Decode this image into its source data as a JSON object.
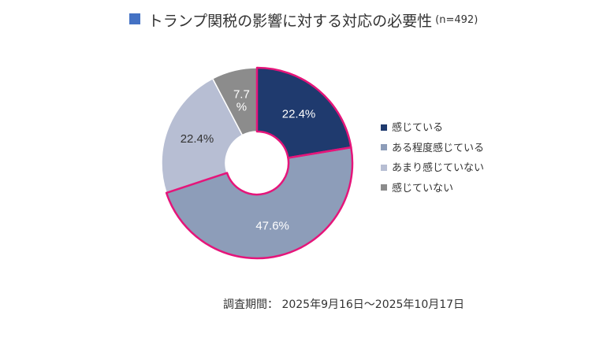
{
  "title": {
    "text": "トランプ関税の影響に対する対応の必要性",
    "n": "(n=492)",
    "square_color": "#4472C4"
  },
  "chart_data": {
    "type": "pie",
    "style": "donut",
    "title": "トランプ関税の影響に対する対応の必要性",
    "categories": [
      "感じている",
      "ある程度感じている",
      "あまり感じていない",
      "感じていない"
    ],
    "values": [
      22.4,
      47.6,
      22.4,
      7.7
    ],
    "labels": [
      "22.4%",
      "47.6%",
      "22.4%",
      "7.7\n%"
    ],
    "colors": [
      "#1F3A6E",
      "#8D9DB9",
      "#B7BED3",
      "#8C8C8C"
    ],
    "label_colors": [
      "#ffffff",
      "#ffffff",
      "#333333",
      "#ffffff"
    ],
    "highlight_color": "#E5157A",
    "highlighted": [
      0,
      1
    ],
    "legend_position": "right"
  },
  "footer": {
    "survey_period": "調査期間： 2025年9月16日～2025年10月17日"
  }
}
